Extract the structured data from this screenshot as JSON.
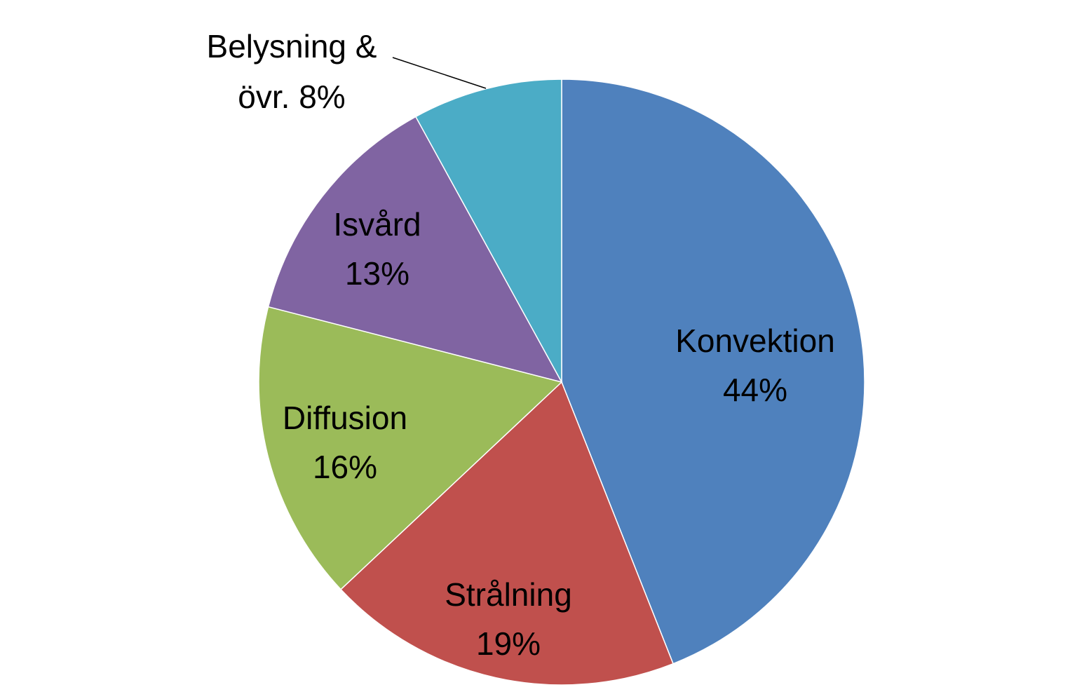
{
  "chart_data": {
    "type": "pie",
    "start_angle": "12 o'clock",
    "direction": "clockwise",
    "slices": [
      {
        "name": "Konvektion",
        "value": 44,
        "value_label": "44%",
        "color": "#4f81bd"
      },
      {
        "name": "Strålning",
        "value": 19,
        "value_label": "19%",
        "color": "#c0504d"
      },
      {
        "name": "Diffusion",
        "value": 16,
        "value_label": "16%",
        "color": "#9bbb59"
      },
      {
        "name": "Isvård",
        "value": 13,
        "value_label": "13%",
        "color": "#8064a2"
      },
      {
        "name": "Belysning &",
        "name_line2": "övr. 8%",
        "value": 8,
        "value_label": "8%",
        "color": "#4bacc6",
        "label_outside": true
      }
    ]
  }
}
